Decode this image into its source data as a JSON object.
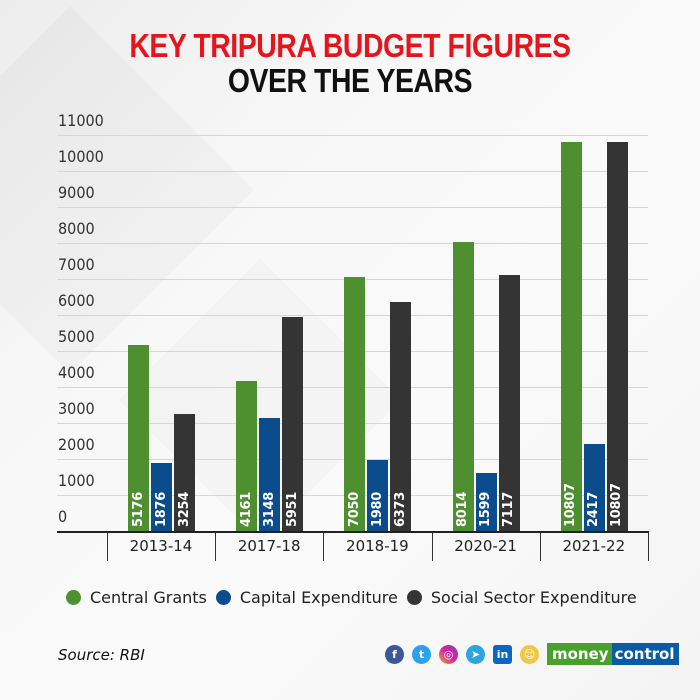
{
  "title": {
    "line1": "KEY TRIPURA BUDGET FIGURES",
    "line2": "OVER THE YEARS"
  },
  "colors": {
    "central_grants": "#4e8f2f",
    "capital_expenditure": "#0b4d8c",
    "social_sector": "#343434",
    "title_red": "#e8141b"
  },
  "legend": [
    {
      "label": "Central Grants",
      "color": "#4e8f2f"
    },
    {
      "label": "Capital Expenditure",
      "color": "#0b4d8c"
    },
    {
      "label": "Social Sector Expenditure",
      "color": "#343434"
    }
  ],
  "footer": {
    "source": "Source: RBI",
    "brand_part1": "money",
    "brand_part2": "control",
    "social_icons": [
      "facebook-icon",
      "twitter-icon",
      "instagram-icon",
      "telegram-icon",
      "linkedin-icon",
      "snapchat-icon"
    ]
  },
  "chart_data": {
    "type": "bar",
    "title": "KEY TRIPURA BUDGET FIGURES OVER THE YEARS",
    "xlabel": "",
    "ylabel": "",
    "ylim": [
      0,
      11000
    ],
    "yticks": [
      0,
      1000,
      2000,
      3000,
      4000,
      5000,
      6000,
      7000,
      8000,
      9000,
      10000,
      11000
    ],
    "grid": true,
    "legend_position": "bottom",
    "categories": [
      "2013-14",
      "2017-18",
      "2018-19",
      "2020-21",
      "2021-22"
    ],
    "series": [
      {
        "name": "Central Grants",
        "values": [
          5176,
          4161,
          7050,
          8014,
          10807
        ]
      },
      {
        "name": "Capital Expenditure",
        "values": [
          1876,
          3148,
          1980,
          1599,
          2417
        ]
      },
      {
        "name": "Social Sector Expenditure",
        "values": [
          3254,
          5951,
          6373,
          7117,
          10807
        ]
      }
    ],
    "source": "RBI"
  }
}
